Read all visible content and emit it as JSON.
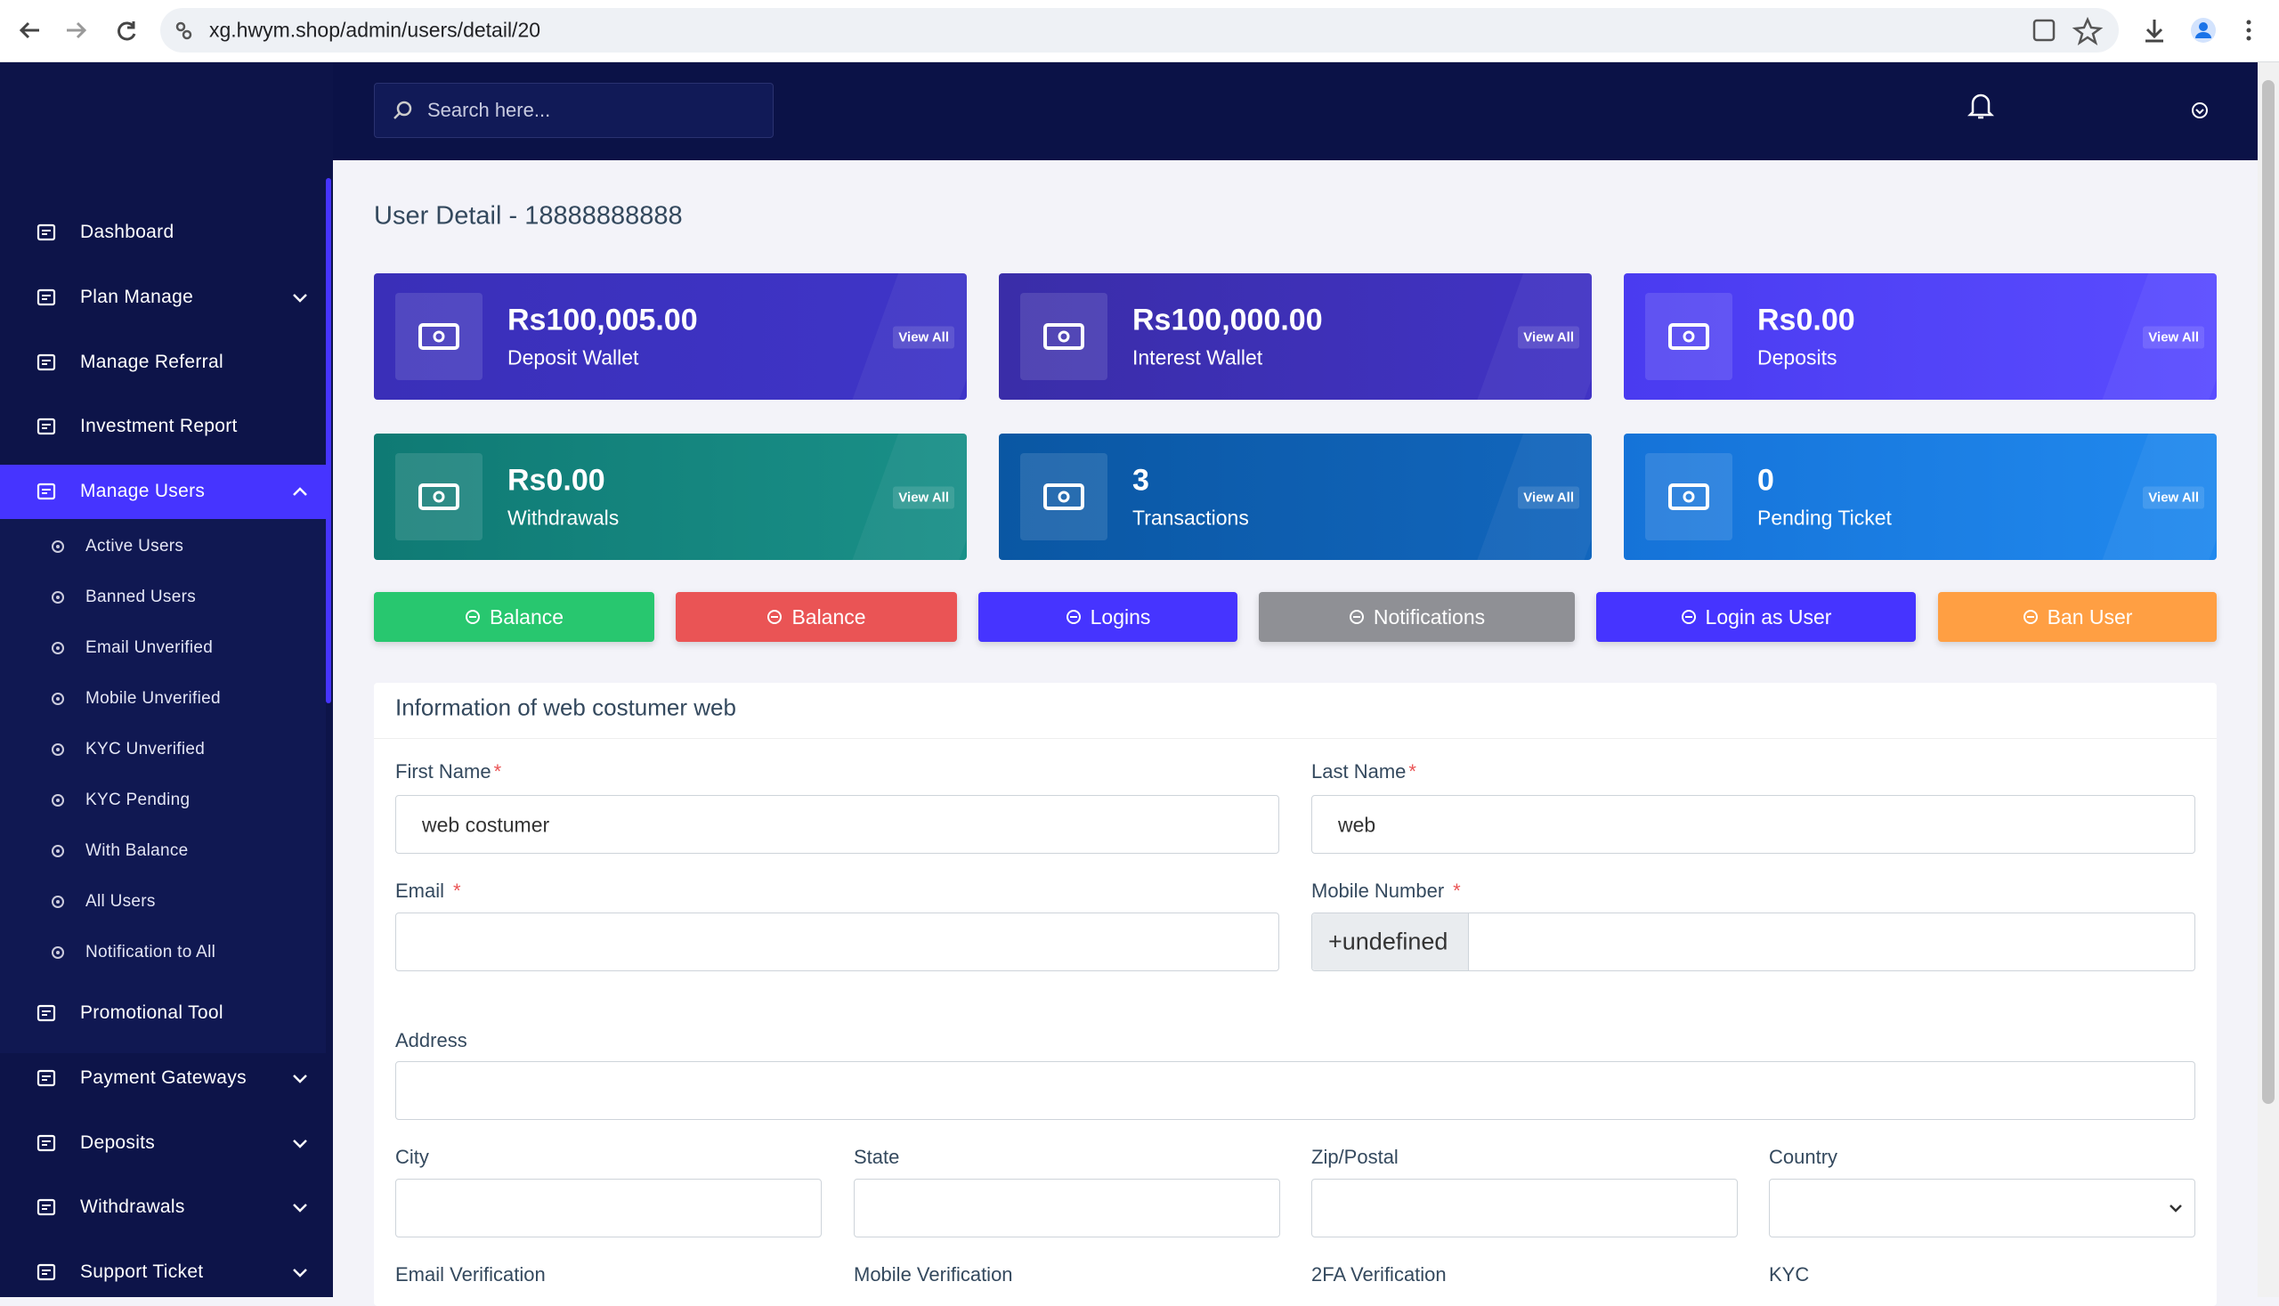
{
  "browser": {
    "url": "xg.hwym.shop/admin/users/detail/20"
  },
  "sidebar": {
    "menu_top": [
      "Dashboard",
      "Plan Manage",
      "Manage Referral",
      "Investment Report",
      "Manage Users"
    ],
    "submenu": [
      "Active Users",
      "Banned Users",
      "Email Unverified",
      "Mobile Unverified",
      "KYC Unverified",
      "KYC Pending",
      "With Balance",
      "All Users",
      "Notification to All"
    ],
    "menu_bottom": [
      "Promotional Tool",
      "Payment Gateways",
      "Deposits",
      "Withdrawals",
      "Support Ticket"
    ]
  },
  "header": {
    "search_placeholder": "Search here..."
  },
  "page": {
    "title": "User Detail - 18888888888"
  },
  "cards": [
    {
      "value": "Rs100,005.00",
      "label": "Deposit Wallet",
      "link": "View All"
    },
    {
      "value": "Rs100,000.00",
      "label": "Interest Wallet",
      "link": "View All"
    },
    {
      "value": "Rs0.00",
      "label": "Deposits",
      "link": "View All"
    },
    {
      "value": "Rs0.00",
      "label": "Withdrawals",
      "link": "View All"
    },
    {
      "value": "3",
      "label": "Transactions",
      "link": "View All"
    },
    {
      "value": "0",
      "label": "Pending Ticket",
      "link": "View All"
    }
  ],
  "buttons": [
    "Balance",
    "Balance",
    "Logins",
    "Notifications",
    "Login as User",
    "Ban User"
  ],
  "form": {
    "title": "Information of web costumer web",
    "required_mark": "*",
    "first_name": {
      "label": "First Name",
      "value": "web costumer"
    },
    "last_name": {
      "label": "Last Name",
      "value": "web"
    },
    "email": {
      "label": "Email"
    },
    "mobile": {
      "label": "Mobile Number",
      "prefix": "+undefined"
    },
    "address": {
      "label": "Address"
    },
    "city": {
      "label": "City"
    },
    "state": {
      "label": "State"
    },
    "zip": {
      "label": "Zip/Postal"
    },
    "country": {
      "label": "Country"
    },
    "verifications": [
      "Email Verification",
      "Mobile Verification",
      "2FA Verification",
      "KYC"
    ]
  }
}
